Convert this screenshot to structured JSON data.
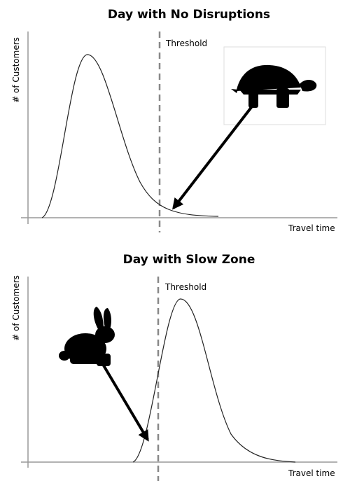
{
  "panels": [
    {
      "title": "Day with No Disruptions",
      "threshold_label": "Threshold",
      "y_axis_label": "# of Customers",
      "x_axis_label": "Travel time"
    },
    {
      "title": "Day with Slow Zone",
      "threshold_label": "Threshold",
      "y_axis_label": "# of Customers",
      "x_axis_label": "Travel time"
    }
  ]
}
